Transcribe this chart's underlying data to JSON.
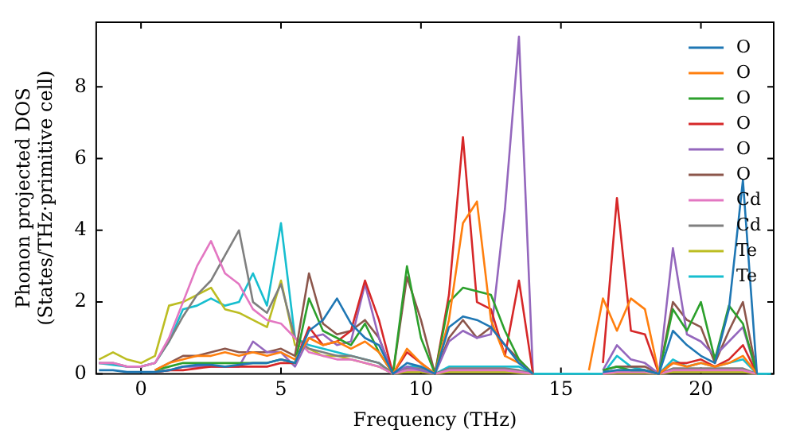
{
  "chart_data": {
    "type": "line",
    "xlabel": "Frequency (THz)",
    "ylabel": "Phonon projected DOS\n(States/THz·primitive cell)",
    "x": [
      -1.5,
      -1,
      -0.5,
      0,
      0.5,
      1,
      1.5,
      2,
      2.5,
      3,
      3.5,
      4,
      4.5,
      5,
      5.5,
      6,
      6.5,
      7,
      7.5,
      8,
      8.5,
      9,
      9.5,
      10,
      10.5,
      11,
      11.5,
      12,
      12.5,
      13,
      13.5,
      14,
      14.5,
      15,
      15.5,
      16,
      16.5,
      17,
      17.5,
      18,
      18.5,
      19,
      19.5,
      20,
      20.5,
      21,
      21.5,
      22,
      22.5
    ],
    "xlim": [
      -1.6,
      22.6
    ],
    "xticks": [
      0,
      5,
      10,
      15,
      20
    ],
    "ylim": [
      0,
      9.8
    ],
    "yticks": [
      0,
      2,
      4,
      6,
      8
    ],
    "grid": false,
    "legend": "top right",
    "marker": "none",
    "line_style": "solid",
    "series": [
      {
        "name": "O",
        "color": "#1f77b4",
        "values": [
          0.1,
          0.1,
          0.05,
          0.05,
          0.05,
          0.1,
          0.2,
          0.25,
          0.25,
          0.2,
          0.25,
          0.3,
          0.3,
          0.4,
          0.3,
          1.2,
          1.5,
          2.1,
          1.4,
          1.0,
          0.8,
          0,
          0.3,
          0.2,
          0,
          1.3,
          1.6,
          1.5,
          1.3,
          0.8,
          0.3,
          0,
          null,
          null,
          null,
          null,
          0.05,
          0.1,
          0.1,
          0.1,
          0,
          1.2,
          0.8,
          0.5,
          0.3,
          1.8,
          5.4,
          0,
          null
        ]
      },
      {
        "name": "O",
        "color": "#ff7f0e",
        "values": [
          null,
          null,
          null,
          null,
          0.1,
          0.3,
          0.4,
          0.5,
          0.5,
          0.6,
          0.5,
          0.6,
          0.5,
          0.6,
          0.4,
          1.0,
          0.8,
          0.9,
          0.7,
          0.9,
          0.6,
          0,
          0.7,
          0.3,
          0,
          1.5,
          4.2,
          4.8,
          1.5,
          0.5,
          0.3,
          0,
          null,
          null,
          null,
          0.1,
          2.1,
          1.2,
          2.1,
          1.8,
          0,
          0.3,
          0.2,
          0.3,
          0.2,
          0.3,
          0.5,
          0,
          null
        ]
      },
      {
        "name": "O",
        "color": "#2ca02c",
        "values": [
          null,
          null,
          null,
          null,
          0.1,
          0.2,
          0.3,
          0.3,
          0.3,
          0.3,
          0.3,
          0.3,
          0.3,
          0.4,
          0.3,
          2.1,
          1.2,
          1.0,
          0.8,
          1.4,
          0.6,
          0,
          3.0,
          1.0,
          0,
          2.0,
          2.4,
          2.3,
          2.2,
          1.2,
          0.4,
          0,
          null,
          null,
          null,
          null,
          0.1,
          0.2,
          0.1,
          0.1,
          0,
          1.8,
          1.2,
          2.0,
          0.4,
          1.9,
          1.4,
          0,
          null
        ]
      },
      {
        "name": "O",
        "color": "#d62728",
        "values": [
          null,
          null,
          null,
          null,
          0.05,
          0.1,
          0.1,
          0.15,
          0.2,
          0.2,
          0.2,
          0.2,
          0.2,
          0.3,
          0.3,
          1.3,
          0.8,
          0.9,
          1.2,
          2.6,
          1.5,
          0,
          0.6,
          0.3,
          0,
          2.2,
          6.6,
          2.0,
          1.8,
          0.5,
          2.6,
          0,
          null,
          null,
          null,
          null,
          0.3,
          4.9,
          1.2,
          1.1,
          0,
          0.3,
          0.3,
          0.4,
          0.2,
          0.4,
          0.8,
          0,
          null
        ]
      },
      {
        "name": "O",
        "color": "#9467bd",
        "values": [
          null,
          null,
          null,
          null,
          0.05,
          0.1,
          0.2,
          0.2,
          0.2,
          0.2,
          0.2,
          0.9,
          0.6,
          0.6,
          0.2,
          1.0,
          1.1,
          0.8,
          0.9,
          2.5,
          1.0,
          0,
          0.2,
          0.1,
          0,
          0.9,
          1.2,
          1.0,
          1.1,
          4.6,
          9.4,
          0,
          null,
          null,
          null,
          null,
          0.1,
          0.8,
          0.4,
          0.3,
          0,
          3.5,
          1.1,
          0.9,
          0.5,
          0.9,
          1.3,
          0,
          null
        ]
      },
      {
        "name": "O",
        "color": "#8c564b",
        "values": [
          null,
          null,
          null,
          null,
          0.1,
          0.3,
          0.5,
          0.5,
          0.6,
          0.7,
          0.6,
          0.6,
          0.6,
          0.7,
          0.5,
          2.8,
          1.4,
          1.1,
          1.2,
          1.5,
          1.0,
          0,
          2.7,
          1.5,
          0,
          1.0,
          1.5,
          1.0,
          1.3,
          0.8,
          0.4,
          0,
          null,
          null,
          null,
          null,
          0.1,
          0.2,
          0.2,
          0.2,
          0,
          2.0,
          1.5,
          1.3,
          0.3,
          1.2,
          2.0,
          0,
          null
        ]
      },
      {
        "name": "Cd",
        "color": "#e377c2",
        "values": [
          0.3,
          0.3,
          0.2,
          0.2,
          0.3,
          1.0,
          2.0,
          3.0,
          3.7,
          2.8,
          2.5,
          1.8,
          1.5,
          1.4,
          1.0,
          0.6,
          0.5,
          0.4,
          0.4,
          0.3,
          0.2,
          0,
          0.1,
          0.1,
          0,
          0.1,
          0.1,
          0.1,
          0.1,
          0.1,
          0.05,
          0,
          null,
          null,
          null,
          null,
          0,
          0.05,
          0.05,
          0.05,
          0,
          0.1,
          0.1,
          0.1,
          0.1,
          0.1,
          0.1,
          0,
          null
        ]
      },
      {
        "name": "Cd",
        "color": "#7f7f7f",
        "values": [
          0.3,
          0.3,
          0.2,
          0.2,
          0.3,
          0.9,
          1.6,
          2.2,
          2.6,
          3.3,
          4.0,
          2.0,
          1.7,
          2.5,
          1.0,
          0.7,
          0.6,
          0.5,
          0.5,
          0.4,
          0.3,
          0,
          0.15,
          0.15,
          0,
          0.15,
          0.15,
          0.15,
          0.15,
          0.15,
          0.1,
          0,
          null,
          null,
          null,
          null,
          0,
          0.1,
          0.1,
          0.1,
          0,
          0.15,
          0.15,
          0.15,
          0.15,
          0.15,
          0.15,
          0,
          null
        ]
      },
      {
        "name": "Te",
        "color": "#bcbd22",
        "values": [
          0.4,
          0.6,
          0.4,
          0.3,
          0.5,
          1.9,
          2.0,
          2.2,
          2.4,
          1.8,
          1.7,
          1.5,
          1.3,
          2.6,
          0.8,
          0.7,
          0.5,
          0.5,
          0.4,
          0.3,
          0.2,
          0,
          0.05,
          0.05,
          0,
          0.05,
          0.05,
          0.05,
          0.05,
          0.05,
          0.02,
          0,
          null,
          null,
          null,
          null,
          0,
          0.02,
          0.02,
          0.02,
          0,
          0.05,
          0.05,
          0.05,
          0.05,
          0.05,
          0.05,
          0,
          null
        ]
      },
      {
        "name": "Te",
        "color": "#17becf",
        "values": [
          0.3,
          0.25,
          0.2,
          0.2,
          0.3,
          0.9,
          1.8,
          1.9,
          2.1,
          1.9,
          2.0,
          2.8,
          1.9,
          4.2,
          1.0,
          0.8,
          0.7,
          0.6,
          0.5,
          0.4,
          0.3,
          0,
          0.2,
          0.2,
          0,
          0.2,
          0.2,
          0.2,
          0.2,
          0.2,
          0.2,
          0,
          0,
          0,
          0,
          0,
          0,
          0.5,
          0.2,
          0.1,
          0,
          0.4,
          0.2,
          0.3,
          0.2,
          0.3,
          0.4,
          0,
          0
        ]
      }
    ]
  }
}
